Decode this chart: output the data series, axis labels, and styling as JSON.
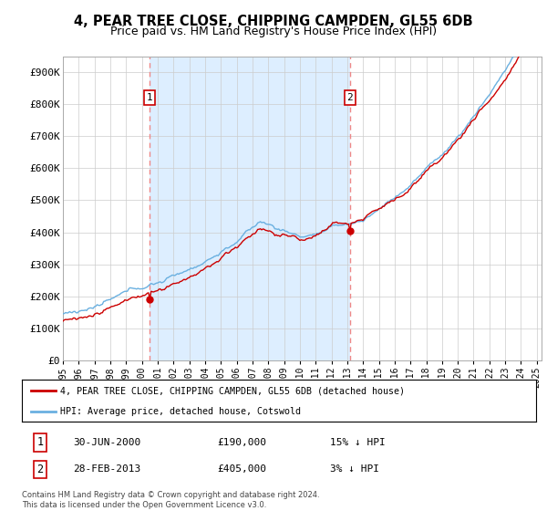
{
  "title": "4, PEAR TREE CLOSE, CHIPPING CAMPDEN, GL55 6DB",
  "subtitle": "Price paid vs. HM Land Registry's House Price Index (HPI)",
  "ylim": [
    0,
    950000
  ],
  "yticks": [
    0,
    100000,
    200000,
    300000,
    400000,
    500000,
    600000,
    700000,
    800000,
    900000
  ],
  "ytick_labels": [
    "£0",
    "£100K",
    "£200K",
    "£300K",
    "£400K",
    "£500K",
    "£600K",
    "£700K",
    "£800K",
    "£900K"
  ],
  "hpi_color": "#6ab0e0",
  "price_color": "#cc0000",
  "vline_color": "#ee8888",
  "shade_color": "#ddeeff",
  "t1_year": 2000.5,
  "t2_year": 2013.17,
  "price1": 190000,
  "price2": 405000,
  "legend_line1": "4, PEAR TREE CLOSE, CHIPPING CAMPDEN, GL55 6DB (detached house)",
  "legend_line2": "HPI: Average price, detached house, Cotswold",
  "annotation1_date": "30-JUN-2000",
  "annotation1_price": "£190,000",
  "annotation1_hpi": "15% ↓ HPI",
  "annotation2_date": "28-FEB-2013",
  "annotation2_price": "£405,000",
  "annotation2_hpi": "3% ↓ HPI",
  "footer": "Contains HM Land Registry data © Crown copyright and database right 2024.\nThis data is licensed under the Open Government Licence v3.0.",
  "background_color": "#ffffff",
  "grid_color": "#cccccc"
}
